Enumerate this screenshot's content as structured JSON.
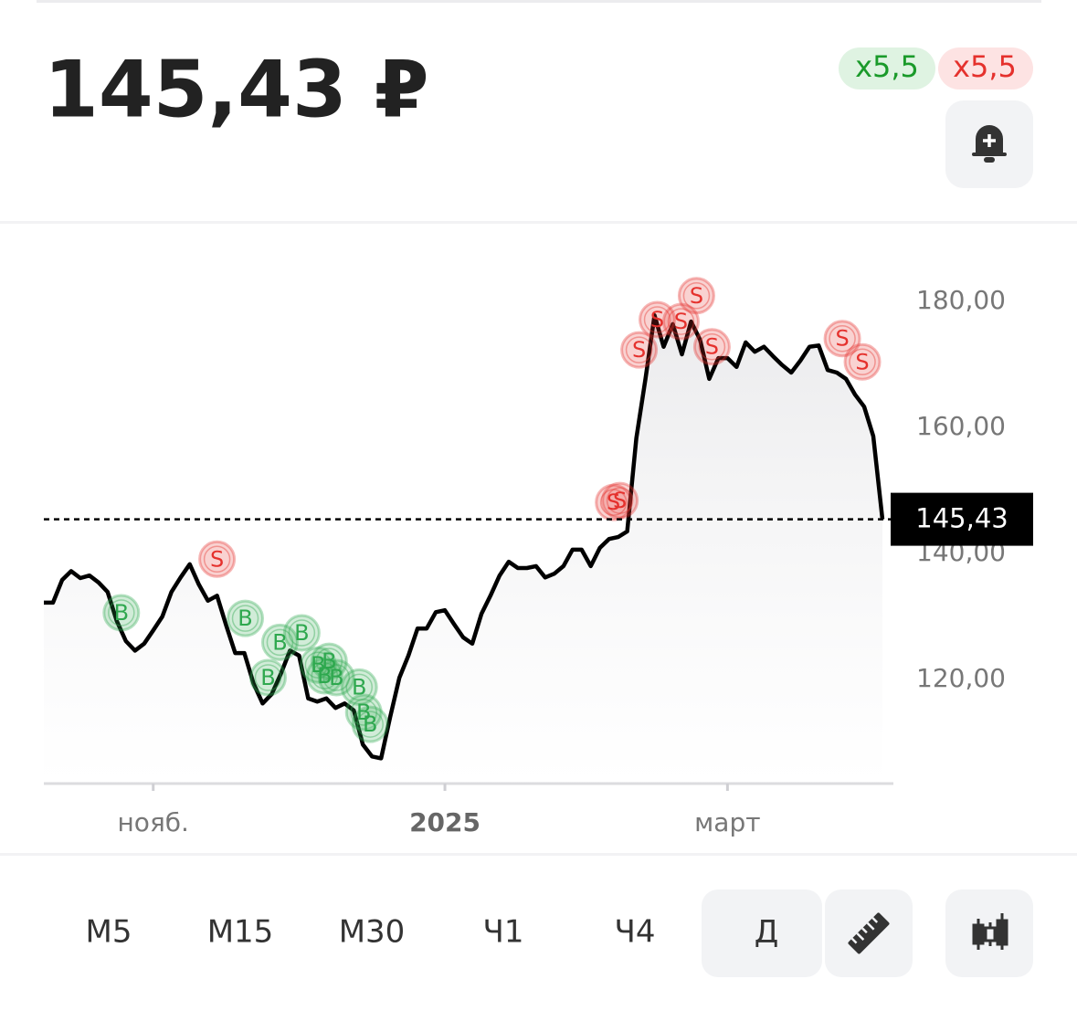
{
  "header": {
    "price": "145,43 ₽",
    "buy_leverage": "x5,5",
    "sell_leverage": "x5,5"
  },
  "timeframes": [
    "М5",
    "М15",
    "М30",
    "Ч1",
    "Ч4",
    "Д"
  ],
  "chart_data": {
    "type": "line",
    "color": "#000000",
    "categories": [
      null,
      null,
      null,
      null,
      null,
      null,
      null,
      null,
      null,
      null,
      null,
      null,
      "нояб.",
      null,
      null,
      null,
      null,
      null,
      null,
      null,
      null,
      null,
      null,
      null,
      null,
      null,
      null,
      null,
      null,
      null,
      null,
      null,
      null,
      null,
      null,
      null,
      null,
      null,
      null,
      null,
      null,
      null,
      null,
      null,
      "2025",
      null,
      null,
      null,
      null,
      null,
      null,
      null,
      null,
      null,
      null,
      null,
      null,
      null,
      null,
      null,
      null,
      null,
      null,
      null,
      null,
      null,
      null,
      null,
      null,
      null,
      null,
      null,
      null,
      null,
      null,
      "март",
      null,
      null,
      null,
      null,
      null,
      null,
      null,
      null,
      null,
      null,
      null,
      null,
      null,
      null,
      null,
      null,
      null
    ],
    "values": [
      132.2,
      132.2,
      135.8,
      137.2,
      136.1,
      136.5,
      135.4,
      133.9,
      129.3,
      126.1,
      124.6,
      125.7,
      127.8,
      130.0,
      133.9,
      136.2,
      138.3,
      135.1,
      132.5,
      133.3,
      128.6,
      124.2,
      124.2,
      119.4,
      116.2,
      117.7,
      120.9,
      124.6,
      123.8,
      117.0,
      116.5,
      117.0,
      115.5,
      116.2,
      115.1,
      109.7,
      107.8,
      107.5,
      114.1,
      120.3,
      123.8,
      128.1,
      128.1,
      130.7,
      131.0,
      128.8,
      126.7,
      125.7,
      130.4,
      133.3,
      136.5,
      138.7,
      137.7,
      137.7,
      138.0,
      136.2,
      136.8,
      138.0,
      140.6,
      140.6,
      138.0,
      140.9,
      142.3,
      142.6,
      143.5,
      158.3,
      167.7,
      177.8,
      172.8,
      176.4,
      171.6,
      176.8,
      173.9,
      167.7,
      171.0,
      171.0,
      169.6,
      173.5,
      172.0,
      172.8,
      171.3,
      169.9,
      168.7,
      170.6,
      172.8,
      173.0,
      169.1,
      168.7,
      167.7,
      165.2,
      163.3,
      158.6,
      145.43
    ],
    "ylim": [
      103.5,
      190
    ],
    "yticks": [
      {
        "value": 120,
        "label": "120,00"
      },
      {
        "value": 140,
        "label": "140,00"
      },
      {
        "value": 160,
        "label": "160,00"
      },
      {
        "value": 180,
        "label": "180,00"
      }
    ],
    "last_price": {
      "value": 145.43,
      "label": "145,43"
    },
    "buy_markers": {
      "text": "B",
      "color": "#2fa84f",
      "points": [
        {
          "x": 8.5,
          "y": 130.6
        },
        {
          "x": 22.1,
          "y": 129.7
        },
        {
          "x": 25.9,
          "y": 125.9
        },
        {
          "x": 28.3,
          "y": 127.4
        },
        {
          "x": 24.6,
          "y": 120.3
        },
        {
          "x": 30.1,
          "y": 122.3
        },
        {
          "x": 31.3,
          "y": 122.9
        },
        {
          "x": 30.8,
          "y": 120.6
        },
        {
          "x": 32.1,
          "y": 120.3
        },
        {
          "x": 34.6,
          "y": 118.8
        },
        {
          "x": 35.1,
          "y": 114.8
        },
        {
          "x": 35.8,
          "y": 112.9
        }
      ]
    },
    "sell_markers": {
      "text": "S",
      "color": "#e5312d",
      "points": [
        {
          "x": 19,
          "y": 139.1
        },
        {
          "x": 62.5,
          "y": 148.1
        },
        {
          "x": 63.2,
          "y": 148.4
        },
        {
          "x": 65.3,
          "y": 172.3
        },
        {
          "x": 67.3,
          "y": 177.1
        },
        {
          "x": 69.9,
          "y": 176.8
        },
        {
          "x": 71.6,
          "y": 180.9
        },
        {
          "x": 73.3,
          "y": 172.8
        },
        {
          "x": 87.6,
          "y": 174.1
        },
        {
          "x": 89.8,
          "y": 170.4
        }
      ]
    }
  }
}
